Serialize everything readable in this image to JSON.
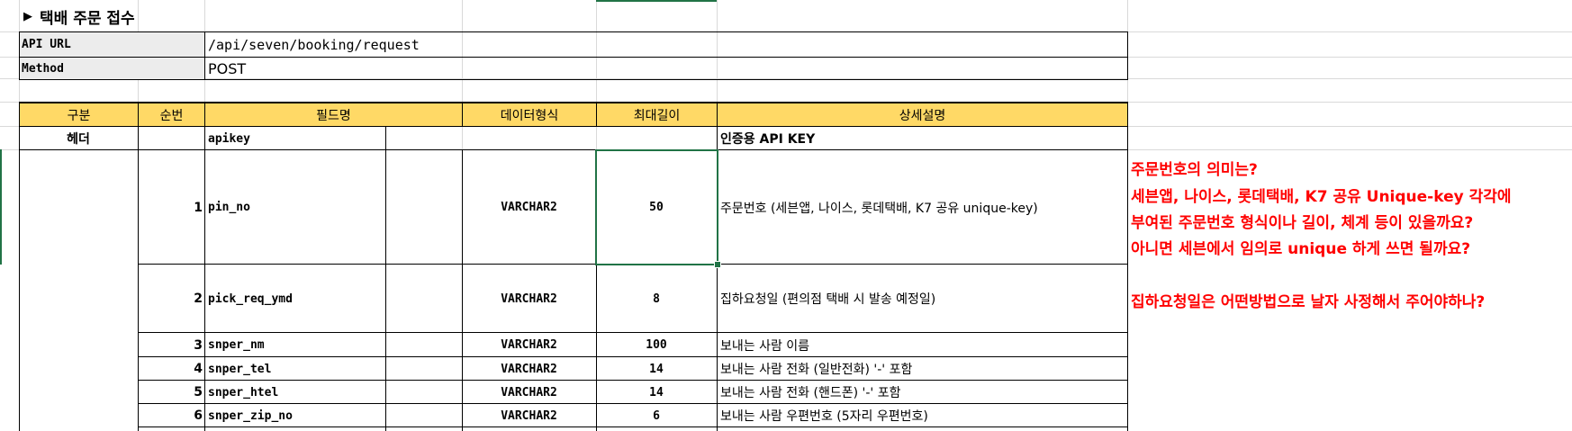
{
  "title": "택배 주문 접수",
  "api_url": {
    "label": "API URL",
    "value": "/api/seven/booking/request"
  },
  "method": {
    "label": "Method",
    "value": "POST"
  },
  "columns": [
    "구분",
    "순번",
    "필드명",
    "데이터형식",
    "최대길이",
    "상세설명"
  ],
  "header_row": {
    "group": "헤더",
    "field": "apikey",
    "desc": "인증용 API KEY"
  },
  "rows": [
    {
      "no": "1",
      "field": "pin_no",
      "type": "VARCHAR2",
      "len": "50",
      "desc": "주문번호 (세븐앱, 나이스, 롯데택배, K7 공유 unique-key)"
    },
    {
      "no": "2",
      "field": "pick_req_ymd",
      "type": "VARCHAR2",
      "len": "8",
      "desc": "집하요청일 (편의점 택배 시 발송 예정일)"
    },
    {
      "no": "3",
      "field": "snper_nm",
      "type": "VARCHAR2",
      "len": "100",
      "desc": "보내는 사람 이름"
    },
    {
      "no": "4",
      "field": "snper_tel",
      "type": "VARCHAR2",
      "len": "14",
      "desc": "보내는 사람 전화 (일반전화) '-' 포함"
    },
    {
      "no": "5",
      "field": "snper_htel",
      "type": "VARCHAR2",
      "len": "14",
      "desc": "보내는 사람 전화 (핸드폰) '-' 포함"
    },
    {
      "no": "6",
      "field": "snper_zip_no",
      "type": "VARCHAR2",
      "len": "6",
      "desc": "보내는 사람 우편번호 (5자리 우편번호)"
    }
  ],
  "notes": [
    "주문번호의 의미는?",
    "세븐앱, 나이스, 롯데택배, K7 공유 Unique-key 각각에",
    "부여된 주문번호 형식이나 길이, 체계 등이 있을까요?",
    " 아니면 세븐에서 임의로 unique 하게 쓰면 될까요?",
    "집하요청일은 어떤방법으로 날자 사정해서 주어야하나?"
  ],
  "colors": {
    "header_fill": "#ffd966",
    "note_color": "#ff0000",
    "selection": "#217346",
    "label_fill": "#ececec"
  },
  "icons": {
    "title_marker": "triangle-right-icon"
  }
}
